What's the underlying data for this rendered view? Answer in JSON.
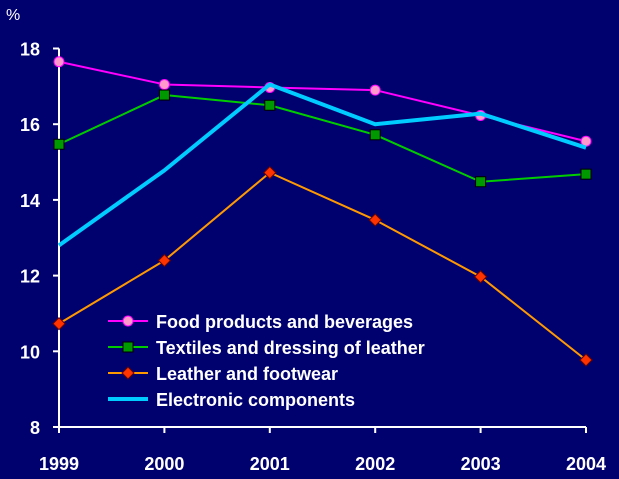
{
  "chart_data": {
    "type": "line",
    "ylabel": "%",
    "x": [
      "1999",
      "2000",
      "2001",
      "2002",
      "2003",
      "2004"
    ],
    "ylim": [
      8,
      18
    ],
    "yticks": [
      8,
      10,
      12,
      14,
      16,
      18
    ],
    "grid": false,
    "legend_position": "bottom-center",
    "series": [
      {
        "name": "Food products and beverages",
        "values": [
          17.65,
          17.05,
          16.97,
          16.9,
          16.23,
          15.55
        ],
        "color": "#ff00ff",
        "marker": "circle",
        "marker_fill": "#ff99cc"
      },
      {
        "name": "Textiles and dressing of leather",
        "values": [
          15.47,
          16.77,
          16.5,
          15.72,
          14.48,
          14.68
        ],
        "color": "#00cc00",
        "marker": "square",
        "marker_fill": "#009900"
      },
      {
        "name": "Leather and footwear",
        "values": [
          10.73,
          12.4,
          14.72,
          13.47,
          11.97,
          9.77
        ],
        "color": "#ff9900",
        "marker": "diamond",
        "marker_fill": "#ff3300"
      },
      {
        "name": "Electronic components",
        "values": [
          12.8,
          14.78,
          17.05,
          16.0,
          16.28,
          15.38
        ],
        "color": "#00ccff",
        "marker": "none"
      }
    ]
  },
  "colors": {
    "background": "#00006e",
    "axis": "#ffffff",
    "text": "#ffffff"
  }
}
